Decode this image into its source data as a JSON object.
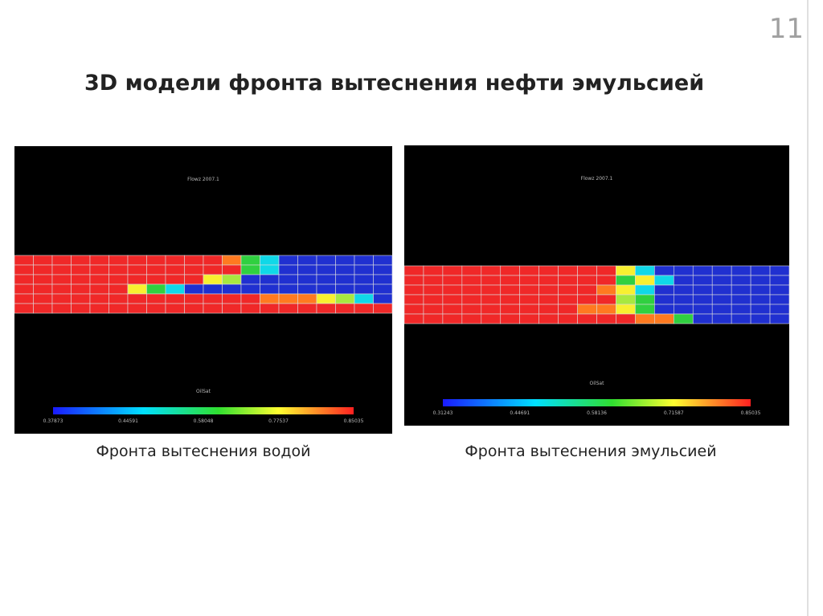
{
  "slide_number": "11",
  "title": "3D модели фронта вытеснения нефти эмульсией",
  "figures": [
    {
      "caption": "Фронта вытеснения водой",
      "image_title": "Flowz 2007.1",
      "colorbar_label": "OilSat",
      "colorbar_ticks": [
        "0.37873",
        "0.44591",
        "0.58048",
        "0.77537",
        "0.85035"
      ]
    },
    {
      "caption": "Фронта вытеснения эмульсией",
      "image_title": "Flowz 2007.1",
      "colorbar_label": "OilSat",
      "colorbar_ticks": [
        "0.31243",
        "0.44691",
        "0.58136",
        "0.71587",
        "0.85035"
      ]
    }
  ]
}
